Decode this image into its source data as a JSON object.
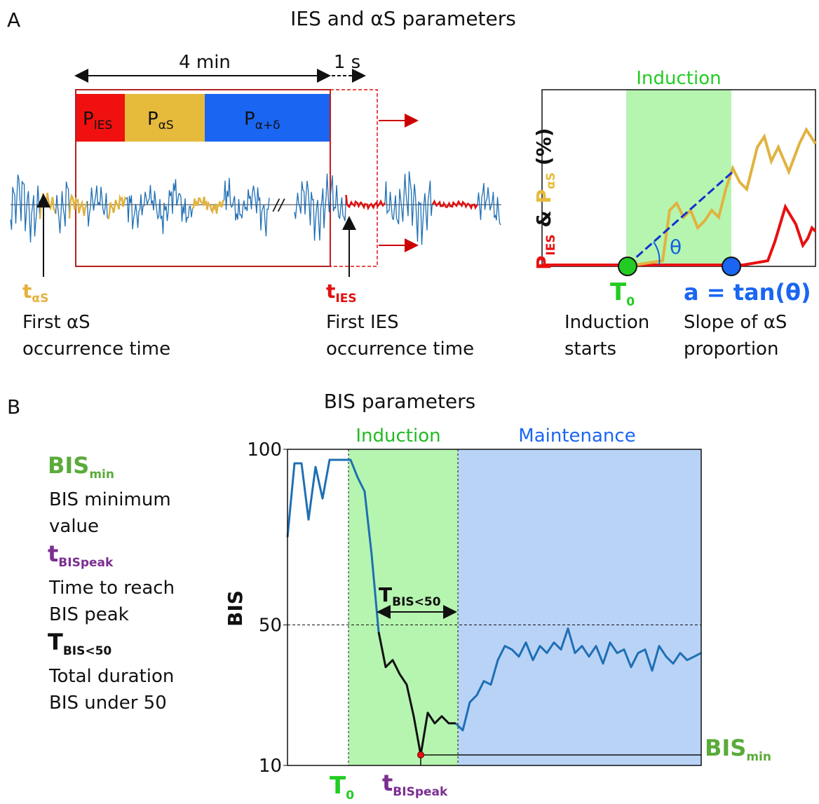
{
  "panel_a": {
    "letter": "A",
    "title": "IES and αS parameters",
    "duration_window": "4 min",
    "duration_step": "1 s",
    "bar_ies": {
      "main": "P",
      "sub": "IES"
    },
    "bar_as": {
      "main": "P",
      "sub": "αS"
    },
    "bar_ad": {
      "main": "P",
      "sub": "α+δ"
    },
    "t_as": {
      "main": "t",
      "sub": "αS",
      "line1": "First αS",
      "line2": "occurrence time"
    },
    "t_ies": {
      "main": "t",
      "sub": "IES",
      "line1": "First IES",
      "line2": "occurrence time"
    },
    "right": {
      "band": "Induction",
      "ylabel_ies": {
        "main": "P",
        "sub": "IES"
      },
      "ylabel_amp": " & ",
      "ylabel_as": {
        "main": "P",
        "sub": "αS"
      },
      "ylabel_unit": " (%)",
      "theta": "θ",
      "t0": {
        "main": "T",
        "sub": "0",
        "line1": "Induction",
        "line2": "starts"
      },
      "slope": {
        "main": "a = tan(θ)",
        "line1": "Slope of αS",
        "line2": "proportion"
      }
    }
  },
  "panel_b": {
    "letter": "B",
    "title": "BIS parameters",
    "legend": [
      {
        "main": "BIS",
        "sub": "min",
        "line1": "BIS minimum",
        "line2": "value",
        "color": "#5aab3a"
      },
      {
        "main": "t",
        "sub": "BISpeak",
        "line1": "Time to reach",
        "line2": "BIS peak",
        "color": "#7b2e91"
      },
      {
        "main": "T",
        "sub": "BIS<50",
        "line1": "Total duration",
        "line2": "BIS under 50",
        "color": "#111111"
      }
    ],
    "chart_data": {
      "type": "line",
      "ylabel": "BIS",
      "ylim": [
        10,
        100
      ],
      "yticks": [
        10,
        50,
        100
      ],
      "band_induction": "Induction",
      "band_maintenance": "Maintenance",
      "t0": {
        "main": "T",
        "sub": "0"
      },
      "tpeak": {
        "main": "t",
        "sub": "BISpeak"
      },
      "tbis50": {
        "main": "T",
        "sub": "BIS<50"
      },
      "bismin": {
        "main": "BIS",
        "sub": "min"
      },
      "series": [
        {
          "color": "#1f6fb4",
          "values": [
            75,
            96,
            96,
            80,
            95,
            86,
            97,
            97,
            97,
            97,
            92,
            88,
            70,
            48,
            null,
            null,
            null,
            null,
            null,
            null,
            null,
            null,
            null,
            null,
            22,
            20,
            28,
            30,
            34,
            33,
            40,
            44,
            43,
            41,
            45,
            40,
            44,
            42,
            45,
            43,
            49,
            42,
            44,
            41,
            44,
            39,
            45,
            42,
            43,
            38,
            42,
            43,
            37,
            44,
            41,
            39,
            42,
            40,
            41,
            42
          ]
        },
        {
          "color": "#111111",
          "values": [
            null,
            null,
            null,
            null,
            null,
            null,
            null,
            null,
            null,
            null,
            null,
            null,
            null,
            48,
            38,
            40,
            36,
            33,
            24,
            13,
            25,
            22,
            24,
            22,
            22,
            null,
            null,
            null,
            null,
            null,
            null,
            null,
            null,
            null,
            null,
            null,
            null,
            null,
            null,
            null,
            null,
            null,
            null,
            null,
            null,
            null,
            null,
            null,
            null,
            null,
            null,
            null,
            null,
            null,
            null,
            null,
            null,
            null,
            null,
            null
          ]
        }
      ]
    }
  }
}
